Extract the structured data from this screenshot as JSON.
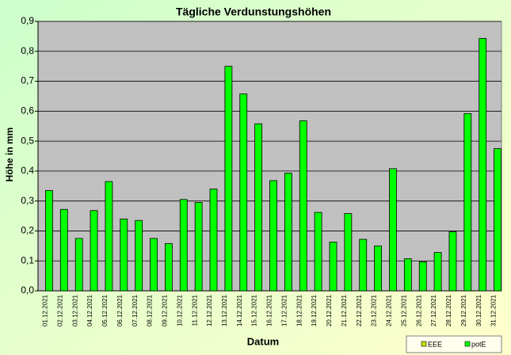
{
  "chart_data": {
    "type": "bar",
    "title": "Tägliche Verdunstungshöhen",
    "x_label": "Datum",
    "y_label": "Höhe in mm",
    "categories": [
      "01.12.2021",
      "02.12.2021",
      "03.12.2021",
      "04.12.2021",
      "05.12.2021",
      "06.12.2021",
      "07.12.2021",
      "08.12.2021",
      "09.12.2021",
      "10.12.2021",
      "11.12.2021",
      "12.12.2021",
      "13.12.2021",
      "14.12.2021",
      "15.12.2021",
      "16.12.2021",
      "17.12.2021",
      "18.12.2021",
      "19.12.2021",
      "20.12.2021",
      "21.12.2021",
      "22.12.2021",
      "23.12.2021",
      "24.12.2021",
      "25.12.2021",
      "26.12.2021",
      "27.12.2021",
      "28.12.2021",
      "29.12.2021",
      "30.12.2021",
      "31.12.2021"
    ],
    "series": [
      {
        "name": "EEE",
        "color": "#c8e000",
        "values": [
          null,
          null,
          null,
          null,
          null,
          null,
          null,
          null,
          null,
          null,
          null,
          null,
          null,
          null,
          null,
          null,
          null,
          null,
          null,
          null,
          null,
          null,
          null,
          null,
          null,
          null,
          null,
          null,
          null,
          null,
          null
        ]
      },
      {
        "name": "potE",
        "color": "#00ff00",
        "values": [
          0.335,
          0.272,
          0.175,
          0.268,
          0.365,
          0.24,
          0.235,
          0.175,
          0.158,
          0.305,
          0.295,
          0.34,
          0.75,
          0.658,
          0.558,
          0.368,
          0.393,
          0.568,
          0.262,
          0.163,
          0.258,
          0.172,
          0.15,
          0.408,
          0.107,
          0.097,
          0.128,
          0.197,
          0.592,
          0.843,
          0.475
        ]
      }
    ],
    "ylim": [
      0,
      0.9
    ],
    "yticks": [
      {
        "value": 0,
        "label": "0,0"
      },
      {
        "value": 0.1,
        "label": "0,1"
      },
      {
        "value": 0.2,
        "label": "0,2"
      },
      {
        "value": 0.3,
        "label": "0,3"
      },
      {
        "value": 0.4,
        "label": "0,4"
      },
      {
        "value": 0.5,
        "label": "0,5"
      },
      {
        "value": 0.6,
        "label": "0,6"
      },
      {
        "value": 0.7,
        "label": "0,7"
      },
      {
        "value": 0.8,
        "label": "0,8"
      },
      {
        "value": 0.9,
        "label": "0,9"
      }
    ],
    "grid": true,
    "legend": "bottom-right"
  }
}
